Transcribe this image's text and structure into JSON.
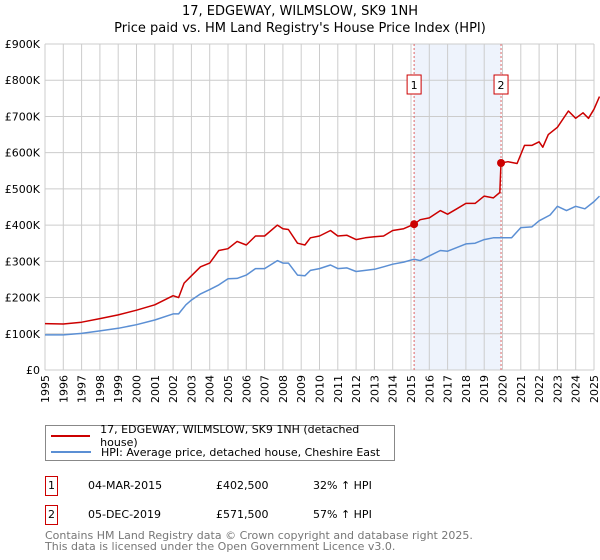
{
  "title": "17, EDGEWAY, WILMSLOW, SK9 1NH",
  "subtitle": "Price paid vs. HM Land Registry's House Price Index (HPI)",
  "colors": {
    "property": "#cc0000",
    "hpi": "#5b8fd4",
    "shade": "#eef3fc",
    "marker": "#e06666"
  },
  "chart_data": {
    "type": "line",
    "title": "Price paid vs. HM Land Registry's House Price Index (HPI)",
    "xlim": [
      1995,
      2025
    ],
    "ylim": [
      0,
      900000
    ],
    "y_ticks": [
      {
        "v": 0,
        "label": "£0"
      },
      {
        "v": 100000,
        "label": "£100K"
      },
      {
        "v": 200000,
        "label": "£200K"
      },
      {
        "v": 300000,
        "label": "£300K"
      },
      {
        "v": 400000,
        "label": "£400K"
      },
      {
        "v": 500000,
        "label": "£500K"
      },
      {
        "v": 600000,
        "label": "£600K"
      },
      {
        "v": 700000,
        "label": "£700K"
      },
      {
        "v": 800000,
        "label": "£800K"
      },
      {
        "v": 900000,
        "label": "£900K"
      }
    ],
    "x_ticks": [
      "1995",
      "1996",
      "1997",
      "1998",
      "1999",
      "2000",
      "2001",
      "2002",
      "2003",
      "2004",
      "2005",
      "2006",
      "2007",
      "2008",
      "2009",
      "2010",
      "2011",
      "2012",
      "2013",
      "2014",
      "2015",
      "2016",
      "2017",
      "2018",
      "2019",
      "2020",
      "2021",
      "2022",
      "2023",
      "2024",
      "2025"
    ],
    "grid": true,
    "legend_placement": "below",
    "series": [
      {
        "name": "17, EDGEWAY, WILMSLOW, SK9 1NH (detached house)",
        "color": "#cc0000",
        "x": [
          1995,
          1996,
          1997,
          1998,
          1999,
          2000,
          2001,
          2002,
          2002.3,
          2002.6,
          2003,
          2003.5,
          2004,
          2004.5,
          2005,
          2005.5,
          2006,
          2006.5,
          2007,
          2007.7,
          2008,
          2008.3,
          2008.8,
          2009.2,
          2009.5,
          2010,
          2010.6,
          2011,
          2011.5,
          2012,
          2012.5,
          2013,
          2013.5,
          2014,
          2014.6,
          2015.17,
          2015.5,
          2016,
          2016.6,
          2017,
          2017.5,
          2018,
          2018.5,
          2019,
          2019.5,
          2019.85,
          2019.92,
          2020.3,
          2020.8,
          2021.2,
          2021.6,
          2022,
          2022.2,
          2022.5,
          2023,
          2023.6,
          2024,
          2024.4,
          2024.7,
          2025,
          2025.3
        ],
        "y": [
          128000,
          127000,
          132000,
          142000,
          152000,
          165000,
          180000,
          205000,
          200000,
          240000,
          260000,
          285000,
          295000,
          330000,
          335000,
          355000,
          345000,
          370000,
          370000,
          400000,
          390000,
          388000,
          350000,
          345000,
          365000,
          370000,
          385000,
          370000,
          372000,
          360000,
          365000,
          368000,
          370000,
          385000,
          390000,
          402500,
          415000,
          420000,
          440000,
          430000,
          445000,
          460000,
          460000,
          480000,
          475000,
          490000,
          571500,
          575000,
          570000,
          620000,
          620000,
          630000,
          615000,
          650000,
          670000,
          715000,
          695000,
          710000,
          695000,
          720000,
          755000
        ]
      },
      {
        "name": "HPI: Average price, detached house, Cheshire East",
        "color": "#5b8fd4",
        "x": [
          1995,
          1996,
          1997,
          1998,
          1999,
          2000,
          2001,
          2002,
          2002.3,
          2002.7,
          2003,
          2003.5,
          2004,
          2004.5,
          2005,
          2005.5,
          2006,
          2006.5,
          2007,
          2007.7,
          2008,
          2008.3,
          2008.8,
          2009.2,
          2009.5,
          2010,
          2010.6,
          2011,
          2011.5,
          2012,
          2012.5,
          2013,
          2013.5,
          2014,
          2014.6,
          2015.17,
          2015.5,
          2016,
          2016.6,
          2017,
          2017.5,
          2018,
          2018.5,
          2019,
          2019.5,
          2019.92,
          2020.5,
          2021,
          2021.6,
          2022,
          2022.6,
          2023,
          2023.5,
          2024,
          2024.5,
          2025,
          2025.3
        ],
        "y": [
          97000,
          97000,
          101000,
          108000,
          115000,
          125000,
          138000,
          155000,
          155000,
          180000,
          193000,
          210000,
          222000,
          235000,
          252000,
          253000,
          262000,
          280000,
          280000,
          302000,
          295000,
          295000,
          262000,
          260000,
          275000,
          280000,
          290000,
          280000,
          282000,
          272000,
          275000,
          278000,
          285000,
          292000,
          298000,
          306000,
          302000,
          315000,
          330000,
          328000,
          338000,
          348000,
          350000,
          360000,
          365000,
          365000,
          365000,
          393000,
          395000,
          412000,
          428000,
          452000,
          440000,
          452000,
          445000,
          465000,
          480000
        ]
      }
    ],
    "annotations": [
      {
        "label": "1",
        "x": 2015.17,
        "y": 402500
      },
      {
        "label": "2",
        "x": 2019.92,
        "y": 571500
      }
    ],
    "shaded_range": [
      2015.17,
      2019.92
    ]
  },
  "legend": [
    {
      "label": "17, EDGEWAY, WILMSLOW, SK9 1NH (detached house)",
      "color": "#cc0000"
    },
    {
      "label": "HPI: Average price, detached house, Cheshire East",
      "color": "#5b8fd4"
    }
  ],
  "sales": [
    {
      "num": "1",
      "date": "04-MAR-2015",
      "price": "£402,500",
      "hpi": "32% ↑ HPI"
    },
    {
      "num": "2",
      "date": "05-DEC-2019",
      "price": "£571,500",
      "hpi": "57% ↑ HPI"
    }
  ],
  "footer": {
    "line1": "Contains HM Land Registry data © Crown copyright and database right 2025.",
    "line2": "This data is licensed under the Open Government Licence v3.0."
  }
}
